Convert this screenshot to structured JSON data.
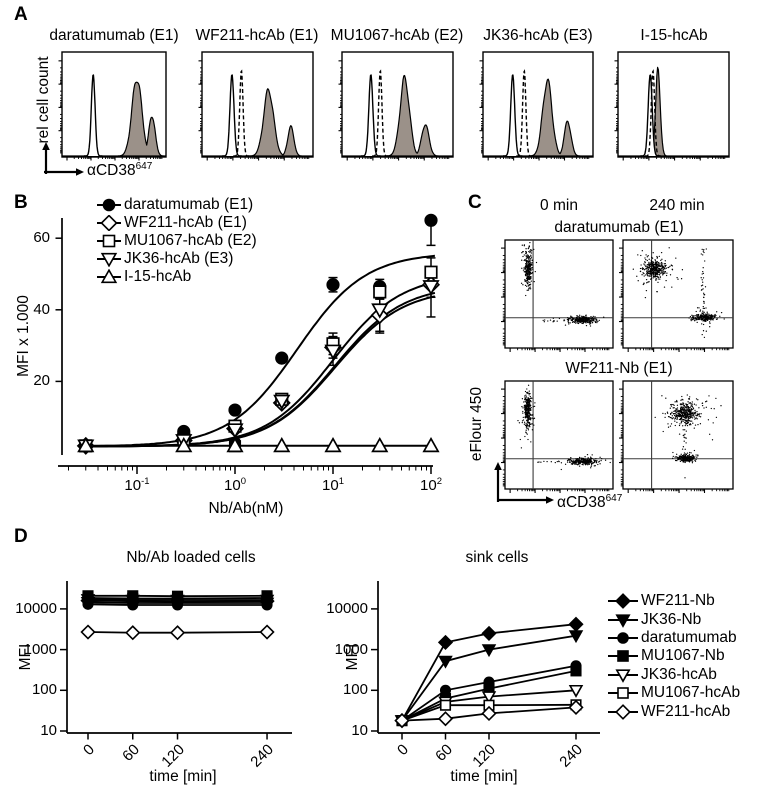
{
  "figure": {
    "background": "#ffffff",
    "ink": "#000000",
    "hist_fill": "#9b9189",
    "quadrant_line": "#3a3a3a"
  },
  "panel_a": {
    "label": "A",
    "y_axis_label": "rel cell count",
    "x_axis_label": "αCD38",
    "x_axis_label_sup": "647",
    "histograms": [
      {
        "title": "daratumumab (E1)"
      },
      {
        "title": "WF211-hcAb (E1)"
      },
      {
        "title": "MU1067-hcAb (E2)"
      },
      {
        "title": "JK36-hcAb (E3)"
      },
      {
        "title": "I-15-hcAb"
      }
    ]
  },
  "panel_b": {
    "label": "B",
    "y_axis_label": "MFI x 1.000",
    "x_axis_label": "Nb/Ab(nM)",
    "legend": [
      {
        "label": "daratumumab (E1)",
        "marker": "circle",
        "filled": true
      },
      {
        "label": "WF211-hcAb (E1)",
        "marker": "diamond",
        "filled": false
      },
      {
        "label": "MU1067-hcAb (E2)",
        "marker": "square",
        "filled": false
      },
      {
        "label": "JK36-hcAb (E3)",
        "marker": "tri-down",
        "filled": false
      },
      {
        "label": "I-15-hcAb",
        "marker": "tri-up",
        "filled": false
      }
    ]
  },
  "panel_c": {
    "label": "C",
    "col_headers": [
      "0 min",
      "240 min"
    ],
    "row_titles": [
      "daratumumab (E1)",
      "WF211-Nb (E1)"
    ],
    "y_axis_label": "eFlour 450",
    "x_axis_label": "αCD38",
    "x_axis_label_sup": "647"
  },
  "panel_d": {
    "label": "D",
    "left_title": "Nb/Ab loaded cells",
    "right_title": "sink cells",
    "y_axis_label": "MFI",
    "x_axis_label": "time [min]",
    "legend": [
      {
        "label": "WF211-Nb",
        "marker": "diamond",
        "filled": true
      },
      {
        "label": "JK36-Nb",
        "marker": "tri-down",
        "filled": true
      },
      {
        "label": "daratumumab",
        "marker": "circle",
        "filled": true
      },
      {
        "label": "MU1067-Nb",
        "marker": "square",
        "filled": true
      },
      {
        "label": "JK36-hcAb",
        "marker": "tri-down",
        "filled": false
      },
      {
        "label": "MU1067-hcAb",
        "marker": "square",
        "filled": false
      },
      {
        "label": "WF211-hcAb",
        "marker": "diamond",
        "filled": false
      }
    ]
  },
  "chart_data": [
    {
      "panel": "A",
      "type": "area",
      "subtype": "flow-cytometry-histograms",
      "xlabel": "αCD38-647",
      "ylabel": "rel cell count",
      "histograms": [
        {
          "title": "daratumumab (E1)",
          "control_peak": {
            "center": 0.3,
            "width": 0.04,
            "height": 0.84
          },
          "dashed_peak": null,
          "stained_peak": {
            "center": 0.72,
            "width": 0.095,
            "height": 0.8
          },
          "stained_shoulder": {
            "center": 0.865,
            "width": 0.06,
            "height": 0.42
          }
        },
        {
          "title": "WF211-hcAb (E1)",
          "control_peak": {
            "center": 0.27,
            "width": 0.04,
            "height": 0.84
          },
          "dashed_peak": {
            "center": 0.355,
            "width": 0.033,
            "height": 0.88
          },
          "stained_peak": {
            "center": 0.6,
            "width": 0.09,
            "height": 0.68
          },
          "stained_shoulder": {
            "center": 0.8,
            "width": 0.055,
            "height": 0.3
          }
        },
        {
          "title": "MU1067-hcAb (E2)",
          "control_peak": {
            "center": 0.26,
            "width": 0.04,
            "height": 0.84
          },
          "dashed_peak": {
            "center": 0.345,
            "width": 0.033,
            "height": 0.88
          },
          "stained_peak": {
            "center": 0.565,
            "width": 0.085,
            "height": 0.8
          },
          "stained_shoulder": {
            "center": 0.75,
            "width": 0.065,
            "height": 0.33
          }
        },
        {
          "title": "JK36-hcAb (E3)",
          "control_peak": {
            "center": 0.27,
            "width": 0.04,
            "height": 0.84
          },
          "dashed_peak": {
            "center": 0.375,
            "width": 0.033,
            "height": 0.88
          },
          "stained_peak": {
            "center": 0.585,
            "width": 0.085,
            "height": 0.78
          },
          "stained_shoulder": {
            "center": 0.77,
            "width": 0.06,
            "height": 0.36
          }
        },
        {
          "title": "I-15-hcAb",
          "control_peak": {
            "center": 0.29,
            "width": 0.04,
            "height": 0.84
          },
          "dashed_peak": {
            "center": 0.315,
            "width": 0.033,
            "height": 0.88
          },
          "stained_peak": {
            "center": 0.36,
            "width": 0.042,
            "height": 0.88
          },
          "stained_shoulder": null
        }
      ]
    },
    {
      "panel": "B",
      "type": "line",
      "subtype": "binding-dose-response",
      "xlabel": "Nb/Ab(nM)",
      "ylabel": "MFI x 1.000",
      "xscale": "log",
      "xlim": [
        0.02,
        120
      ],
      "ylim": [
        0,
        68
      ],
      "yticks": [
        20,
        40,
        60
      ],
      "xtick_exponents": [
        -1,
        0,
        1,
        2
      ],
      "x": [
        0.03,
        0.3,
        1,
        3,
        10,
        30,
        100
      ],
      "series": [
        {
          "name": "daratumumab (E1)",
          "marker": "circle",
          "filled": true,
          "y": [
            2,
            6,
            12,
            26.5,
            47,
            46.5,
            65
          ],
          "errlo": [
            0,
            0,
            0,
            0,
            2,
            2,
            7
          ],
          "errhi": [
            0,
            0,
            0,
            0,
            2,
            2,
            0
          ],
          "fit": {
            "bottom": 1.8,
            "top": 56,
            "ec50": 4.3,
            "hill": 1.25
          }
        },
        {
          "name": "WF211-hcAb (E1)",
          "marker": "diamond",
          "filled": false,
          "y": [
            2,
            3.5,
            6.8,
            14,
            29.5,
            38.5,
            47
          ],
          "errlo": [
            0,
            0,
            0,
            0,
            3,
            5,
            9
          ],
          "errhi": [
            0,
            0,
            0,
            0,
            3,
            2,
            4
          ],
          "fit": {
            "bottom": 1.8,
            "top": 47,
            "ec50": 10.5,
            "hill": 1.25
          }
        },
        {
          "name": "MU1067-hcAb (E2)",
          "marker": "square",
          "filled": false,
          "y": [
            2,
            3.8,
            7.5,
            15,
            30.5,
            45,
            50.5
          ],
          "errlo": [
            0,
            0,
            0,
            1,
            3,
            2,
            4
          ],
          "errhi": [
            0,
            0,
            0,
            1,
            3,
            2,
            4
          ],
          "fit": {
            "bottom": 1.8,
            "top": 50,
            "ec50": 10,
            "hill": 1.25
          }
        },
        {
          "name": "JK36-hcAb (E3)",
          "marker": "tri-down",
          "filled": false,
          "y": [
            2,
            3.5,
            6.5,
            14.5,
            28.5,
            40,
            46.5
          ],
          "errlo": [
            0,
            0,
            0,
            1.5,
            4,
            6,
            3
          ],
          "errhi": [
            0,
            0,
            0,
            1.5,
            4,
            3,
            3
          ],
          "fit": {
            "bottom": 1.8,
            "top": 46,
            "ec50": 10.5,
            "hill": 1.25
          }
        },
        {
          "name": "I-15-hcAb",
          "marker": "tri-up",
          "filled": false,
          "y": [
            2,
            2,
            2,
            2,
            2,
            2,
            2
          ],
          "errlo": [
            0,
            0,
            0,
            0,
            0,
            0,
            0
          ],
          "errhi": [
            0,
            0,
            0,
            0,
            0,
            0,
            0
          ],
          "fit": {
            "bottom": 2,
            "top": 2,
            "ec50": 1,
            "hill": 1
          }
        }
      ],
      "extra_points": [
        {
          "marker": "circle",
          "filled": true,
          "x": 1,
          "y": 2.9
        },
        {
          "marker": "square",
          "filled": true,
          "x": 1,
          "y": 1.9
        },
        {
          "marker": "square",
          "filled": true,
          "x": 0.03,
          "y": 2
        }
      ]
    },
    {
      "panel": "C",
      "type": "scatter",
      "subtype": "flow-cytometry-dot-plots",
      "col_headers": [
        "0 min",
        "240 min"
      ],
      "row_titles": [
        "daratumumab (E1)",
        "WF211-Nb (E1)"
      ],
      "xlabel": "αCD38-647",
      "ylabel": "eFlour 450",
      "quadrant": {
        "x_frac": 0.26,
        "y_frac": 0.72
      },
      "plots": [
        {
          "row": "daratumumab (E1)",
          "col": "0 min",
          "clusters": [
            {
              "cx": 0.215,
              "cy": 0.26,
              "rx": 0.018,
              "ry": 0.075,
              "n": 260
            },
            {
              "cx": 0.215,
              "cy": 0.26,
              "rx": 0.035,
              "ry": 0.115,
              "n": 45
            },
            {
              "cx": 0.72,
              "cy": 0.74,
              "rx": 0.06,
              "ry": 0.015,
              "n": 260
            },
            {
              "cx": 0.7,
              "cy": 0.74,
              "rx": 0.1,
              "ry": 0.028,
              "n": 40
            },
            {
              "cx": 0.5,
              "cy": 0.745,
              "rx": 0.13,
              "ry": 0.006,
              "n": 14
            }
          ]
        },
        {
          "row": "daratumumab (E1)",
          "col": "240 min",
          "clusters": [
            {
              "cx": 0.29,
              "cy": 0.27,
              "rx": 0.05,
              "ry": 0.042,
              "n": 300
            },
            {
              "cx": 0.31,
              "cy": 0.27,
              "rx": 0.11,
              "ry": 0.085,
              "n": 85
            },
            {
              "cx": 0.74,
              "cy": 0.72,
              "rx": 0.05,
              "ry": 0.016,
              "n": 230
            },
            {
              "cx": 0.74,
              "cy": 0.7,
              "rx": 0.07,
              "ry": 0.035,
              "n": 30
            },
            {
              "cx": 0.73,
              "cy": 0.47,
              "rx": 0.012,
              "ry": 0.2,
              "n": 45
            }
          ]
        },
        {
          "row": "WF211-Nb (E1)",
          "col": "0 min",
          "clusters": [
            {
              "cx": 0.21,
              "cy": 0.27,
              "rx": 0.018,
              "ry": 0.08,
              "n": 260
            },
            {
              "cx": 0.21,
              "cy": 0.26,
              "rx": 0.035,
              "ry": 0.12,
              "n": 45
            },
            {
              "cx": 0.73,
              "cy": 0.745,
              "rx": 0.06,
              "ry": 0.015,
              "n": 260
            },
            {
              "cx": 0.7,
              "cy": 0.745,
              "rx": 0.1,
              "ry": 0.028,
              "n": 35
            },
            {
              "cx": 0.5,
              "cy": 0.75,
              "rx": 0.13,
              "ry": 0.006,
              "n": 14
            }
          ]
        },
        {
          "row": "WF211-Nb (E1)",
          "col": "240 min",
          "clusters": [
            {
              "cx": 0.56,
              "cy": 0.3,
              "rx": 0.055,
              "ry": 0.048,
              "n": 320
            },
            {
              "cx": 0.57,
              "cy": 0.3,
              "rx": 0.12,
              "ry": 0.1,
              "n": 85
            },
            {
              "cx": 0.57,
              "cy": 0.715,
              "rx": 0.04,
              "ry": 0.015,
              "n": 200
            },
            {
              "cx": 0.57,
              "cy": 0.7,
              "rx": 0.06,
              "ry": 0.03,
              "n": 25
            },
            {
              "cx": 0.56,
              "cy": 0.5,
              "rx": 0.012,
              "ry": 0.17,
              "n": 30
            },
            {
              "cx": 0.8,
              "cy": 0.32,
              "rx": 0.14,
              "ry": 0.12,
              "n": 14
            }
          ]
        }
      ]
    },
    {
      "panel": "D-left",
      "type": "line",
      "title": "Nb/Ab loaded cells",
      "xlabel": "time [min]",
      "ylabel": "MFI",
      "yscale": "log",
      "yticks": [
        10,
        100,
        1000,
        10000
      ],
      "x": [
        0,
        60,
        120,
        240
      ],
      "series": [
        {
          "name": "JK36-hcAb",
          "marker": "tri-down",
          "filled": false,
          "y": [
            17000,
            16500,
            16500,
            16500
          ]
        },
        {
          "name": "MU1067-hcAb",
          "marker": "square",
          "filled": false,
          "y": [
            18500,
            18000,
            18000,
            18500
          ]
        },
        {
          "name": "WF211-Nb",
          "marker": "diamond",
          "filled": true,
          "y": [
            16000,
            15500,
            15000,
            15500
          ]
        },
        {
          "name": "JK36-Nb",
          "marker": "tri-down",
          "filled": true,
          "y": [
            14500,
            14000,
            14000,
            14000
          ]
        },
        {
          "name": "daratumumab",
          "marker": "circle",
          "filled": true,
          "y": [
            13000,
            12500,
            12500,
            12500
          ]
        },
        {
          "name": "MU1067-Nb",
          "marker": "square",
          "filled": true,
          "y": [
            21000,
            21000,
            20500,
            21000
          ]
        },
        {
          "name": "WF211-hcAb",
          "marker": "diamond",
          "filled": false,
          "y": [
            2700,
            2600,
            2600,
            2700
          ]
        }
      ]
    },
    {
      "panel": "D-right",
      "type": "line",
      "title": "sink cells",
      "xlabel": "time [min]",
      "ylabel": "MFI",
      "yscale": "log",
      "yticks": [
        10,
        100,
        1000,
        10000
      ],
      "x": [
        0,
        60,
        120,
        240
      ],
      "series": [
        {
          "name": "WF211-Nb",
          "marker": "diamond",
          "filled": true,
          "y": [
            18,
            1500,
            2500,
            4200
          ]
        },
        {
          "name": "JK36-Nb",
          "marker": "tri-down",
          "filled": true,
          "y": [
            18,
            520,
            1000,
            2200
          ]
        },
        {
          "name": "daratumumab",
          "marker": "circle",
          "filled": true,
          "y": [
            18,
            100,
            160,
            400
          ]
        },
        {
          "name": "MU1067-Nb",
          "marker": "square",
          "filled": true,
          "y": [
            18,
            63,
            110,
            300
          ]
        },
        {
          "name": "JK36-hcAb",
          "marker": "tri-down",
          "filled": false,
          "y": [
            18,
            52,
            70,
            100
          ]
        },
        {
          "name": "MU1067-hcAb",
          "marker": "square",
          "filled": false,
          "y": [
            18,
            43,
            43,
            44
          ]
        },
        {
          "name": "WF211-hcAb",
          "marker": "diamond",
          "filled": false,
          "y": [
            18,
            20,
            27,
            38
          ]
        }
      ]
    }
  ]
}
